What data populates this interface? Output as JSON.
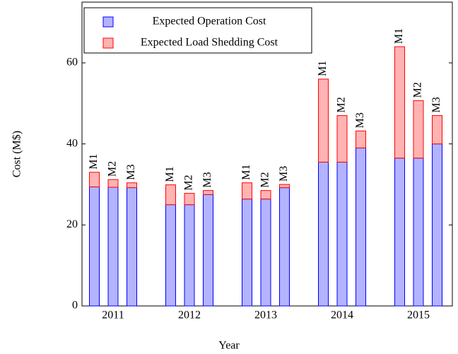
{
  "chart_data": {
    "type": "stacked-grouped-bar",
    "xlabel": "Year",
    "ylabel": "Cost (M$)",
    "categories": [
      "2011",
      "2012",
      "2013",
      "2014",
      "2015"
    ],
    "groups": [
      "M1",
      "M2",
      "M3"
    ],
    "series": [
      {
        "name": "Expected Operation Cost",
        "color": "#b3b3ff",
        "edge": "#0000ff",
        "values": [
          [
            29.4,
            29.3,
            29.2
          ],
          [
            25.0,
            25.0,
            27.5
          ],
          [
            26.4,
            26.4,
            29.2
          ],
          [
            35.5,
            35.5,
            39.0
          ],
          [
            36.5,
            36.5,
            40.0
          ]
        ]
      },
      {
        "name": "Expected Load Shedding Cost",
        "color": "#ffb3b3",
        "edge": "#ff0000",
        "values": [
          [
            3.6,
            1.9,
            1.2
          ],
          [
            4.9,
            2.8,
            1.0
          ],
          [
            4.0,
            2.1,
            0.8
          ],
          [
            20.5,
            11.5,
            4.2
          ],
          [
            27.5,
            14.2,
            7.0
          ]
        ]
      }
    ],
    "ylim": [
      0,
      75
    ],
    "yticks": [
      0,
      20,
      40,
      60
    ],
    "legend": "upper left"
  }
}
